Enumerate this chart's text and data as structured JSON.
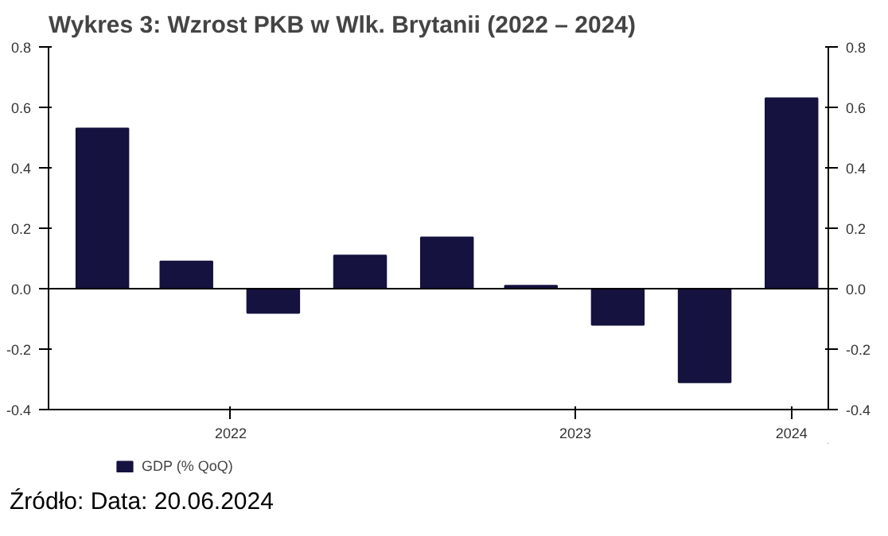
{
  "chart_data": {
    "type": "bar",
    "title": "Wykres 3: Wzrost PKB w Wlk. Brytanii (2022 – 2024)",
    "x": [
      "2022-02-15",
      "2022-05-15",
      "2022-08-15",
      "2022-11-15",
      "2023-02-15",
      "2023-05-15",
      "2023-08-15",
      "2023-11-15",
      "2024-02-15"
    ],
    "series": [
      {
        "name": "GDP (% QoQ)",
        "color": "#15123f",
        "values": [
          0.53,
          0.09,
          -0.08,
          0.11,
          0.17,
          0.01,
          -0.12,
          -0.31,
          0.63
        ]
      }
    ],
    "xlim": [
      "2021-12-20",
      "2024-03-25"
    ],
    "xticks": [
      {
        "value": "2022-07-01",
        "label": "2022"
      },
      {
        "value": "2023-07-01",
        "label": "2023"
      },
      {
        "value": "2024-02-15",
        "label": "2024"
      }
    ],
    "ylim": [
      -0.4,
      0.8
    ],
    "yticks": [
      -0.4,
      -0.2,
      {
        "value": 0,
        "label": "0.0"
      },
      0.2,
      0.4,
      0.6,
      0.8
    ],
    "y2lim": [
      -0.4,
      0.8
    ],
    "y2ticks": [
      -0.4,
      -0.2,
      {
        "value": 0,
        "label": "0.0"
      },
      0.2,
      0.4,
      0.6,
      0.8
    ],
    "ref_lines": [
      {
        "axis": "y",
        "value": 0,
        "color": "#000000"
      }
    ],
    "legend": "bottom",
    "grid": false,
    "annotations": [
      "Źródło: Data: 20.06.2024"
    ]
  }
}
